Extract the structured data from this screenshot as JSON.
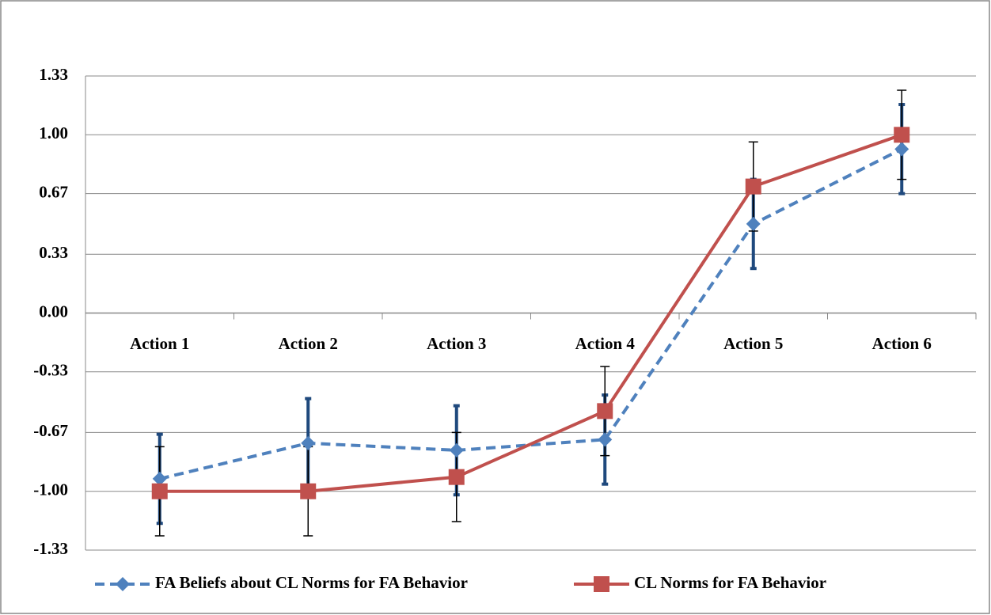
{
  "chart_data": {
    "type": "line",
    "categories": [
      "Action 1",
      "Action 2",
      "Action 3",
      "Action 4",
      "Action 5",
      "Action 6"
    ],
    "series": [
      {
        "name": "FA Beliefs about CL Norms for FA Behavior",
        "color": "#4f81bd",
        "dash": true,
        "marker": "diamond",
        "error_color": "#1f497d",
        "values": [
          -0.93,
          -0.73,
          -0.77,
          -0.71,
          0.5,
          0.92
        ],
        "errors": [
          0.25,
          0.25,
          0.25,
          0.25,
          0.25,
          0.25
        ]
      },
      {
        "name": "CL Norms for FA Behavior",
        "color": "#c0504d",
        "dash": false,
        "marker": "square",
        "error_color": "#000000",
        "values": [
          -1.0,
          -1.0,
          -0.92,
          -0.55,
          0.71,
          1.0
        ],
        "errors": [
          0.25,
          0.25,
          0.25,
          0.25,
          0.25,
          0.25
        ]
      }
    ],
    "ylim": [
      -1.33,
      1.33
    ],
    "yticks": [
      1.33,
      {
        "value": 1,
        "label": "1.00"
      },
      0.67,
      0.33,
      {
        "value": 0,
        "label": "0.00"
      },
      -0.33,
      -0.67,
      {
        "value": -1,
        "label": "-1.00"
      },
      -1.33
    ],
    "grid": true,
    "legend": "bottom"
  }
}
